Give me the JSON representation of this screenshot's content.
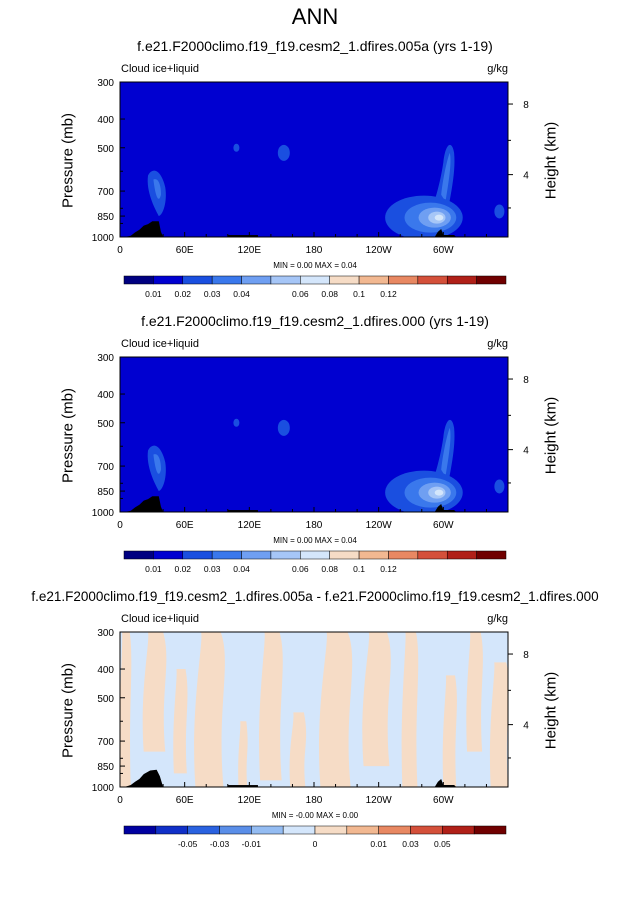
{
  "page_title": "ANN",
  "colors": {
    "cmap": [
      "#000080",
      "#0000d0",
      "#1a4fe0",
      "#3a78ec",
      "#6f9ff2",
      "#a6c6f7",
      "#d4e6fb",
      "#f6dcc6",
      "#f2b891",
      "#e88862",
      "#d4503a",
      "#b02018",
      "#700000"
    ],
    "land": "#000000"
  },
  "chart_data": [
    {
      "type": "contour",
      "title": "f.e21.F2000climo.f19_f19.cesm2_1.dfires.005a (yrs 1-19)",
      "variable": "Cloud ice+liquid",
      "units": "g/kg",
      "ylabel": "Pressure (mb)",
      "ylabel_right": "Height (km)",
      "xticks": [
        "0",
        "60E",
        "120E",
        "180",
        "120W",
        "60W"
      ],
      "yticks": [
        "300",
        "400",
        "500",
        "700",
        "850",
        "1000"
      ],
      "yticks_right": [
        "8",
        "4"
      ],
      "minmax": "MIN =   0.00  MAX =   0.04",
      "colorbar_labels": [
        "0.01",
        "0.02",
        "0.03",
        "0.04",
        "0.06",
        "0.08",
        "0.1",
        "0.12"
      ],
      "field": "control"
    },
    {
      "type": "contour",
      "title": "f.e21.F2000climo.f19_f19.cesm2_1.dfires.000 (yrs 1-19)",
      "variable": "Cloud ice+liquid",
      "units": "g/kg",
      "ylabel": "Pressure (mb)",
      "ylabel_right": "Height (km)",
      "xticks": [
        "0",
        "60E",
        "120E",
        "180",
        "120W",
        "60W"
      ],
      "yticks": [
        "300",
        "400",
        "500",
        "700",
        "850",
        "1000"
      ],
      "yticks_right": [
        "8",
        "4"
      ],
      "minmax": "MIN =   0.00  MAX =   0.04",
      "colorbar_labels": [
        "0.01",
        "0.02",
        "0.03",
        "0.04",
        "0.06",
        "0.08",
        "0.1",
        "0.12"
      ],
      "field": "control"
    },
    {
      "type": "contour",
      "title": "f.e21.F2000climo.f19_f19.cesm2_1.dfires.005a - f.e21.F2000climo.f19_f19.cesm2_1.dfires.000",
      "variable": "Cloud ice+liquid",
      "units": "g/kg",
      "ylabel": "Pressure (mb)",
      "ylabel_right": "Height (km)",
      "xticks": [
        "0",
        "60E",
        "120E",
        "180",
        "120W",
        "60W"
      ],
      "yticks": [
        "300",
        "400",
        "500",
        "700",
        "850",
        "1000"
      ],
      "yticks_right": [
        "8",
        "4"
      ],
      "minmax": "MIN =  -0.00  MAX =   0.00",
      "colorbar_labels": [
        "-0.05",
        "-0.03",
        "-0.01",
        "0",
        "0.01",
        "0.03",
        "0.05"
      ],
      "field": "difference"
    }
  ]
}
